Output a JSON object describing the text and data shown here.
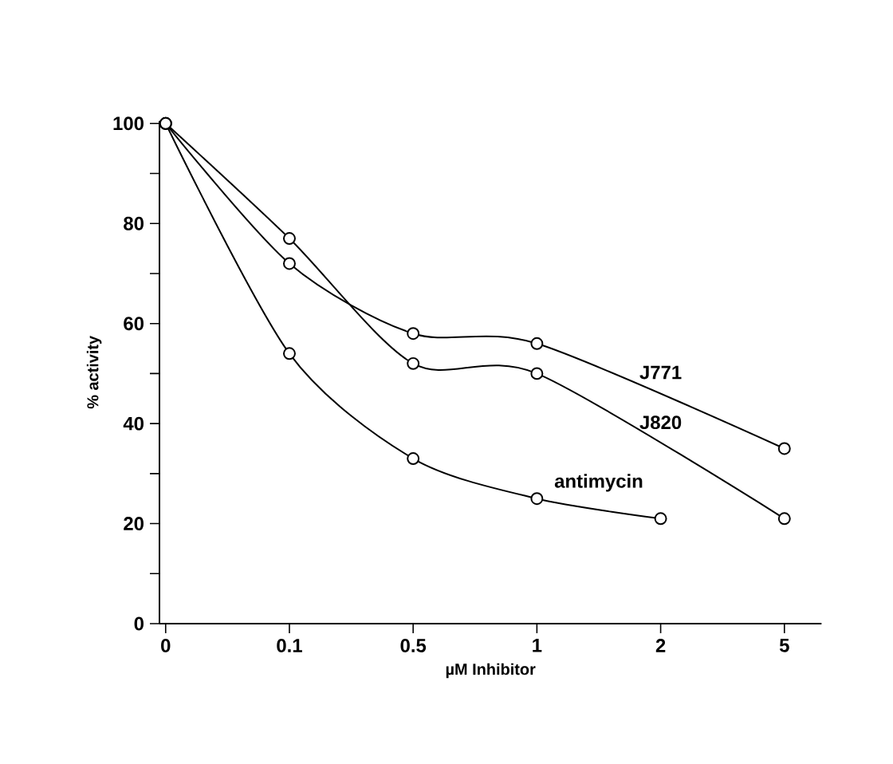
{
  "chart_data": {
    "type": "line",
    "xlabel": "µM Inhibitor",
    "ylabel": "% activity",
    "categories": [
      "0",
      "0.1",
      "0.5",
      "1",
      "2",
      "5"
    ],
    "ylim": [
      0,
      100
    ],
    "yticks": [
      0,
      {
        "value": 10,
        "label": null
      },
      20,
      {
        "value": 30,
        "label": null
      },
      40,
      {
        "value": 50,
        "label": null
      },
      60,
      {
        "value": 70,
        "label": null
      },
      80,
      {
        "value": 90,
        "label": null
      },
      100
    ],
    "marker": "circle",
    "line_style": "solid",
    "grid": false,
    "legend": false,
    "series": [
      {
        "name": "J771",
        "color": "#000000",
        "values": [
          100,
          72,
          58,
          56,
          null,
          35
        ]
      },
      {
        "name": "J820",
        "color": "#000000",
        "values": [
          100,
          77,
          52,
          50,
          null,
          21
        ]
      },
      {
        "name": "antimycin",
        "color": "#000000",
        "values": [
          100,
          54,
          33,
          25,
          21,
          null
        ]
      }
    ]
  }
}
